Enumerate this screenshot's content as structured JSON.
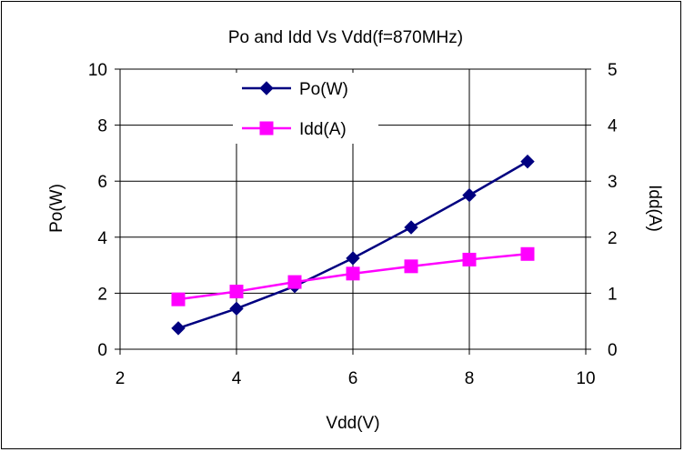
{
  "chart_data": {
    "type": "line",
    "title": "Po and Idd Vs Vdd(f=870MHz)",
    "xlabel": "Vdd(V)",
    "ylabel": "Po(W)",
    "y2label": "Idd(A)",
    "xlim": [
      2,
      10
    ],
    "ylim": [
      0,
      10
    ],
    "y2lim": [
      0,
      5
    ],
    "xticks": [
      "2",
      "4",
      "6",
      "8",
      "10"
    ],
    "yticks": [
      "0",
      "2",
      "4",
      "6",
      "8",
      "10"
    ],
    "y2ticks": [
      "0",
      "1",
      "2",
      "3",
      "4",
      "5"
    ],
    "grid": true,
    "legend_position": "top-center",
    "series": [
      {
        "name": "Po(W)",
        "axis": "left",
        "color": "#000080",
        "marker": "diamond",
        "x": [
          3,
          4,
          5,
          6,
          7,
          8,
          9
        ],
        "y": [
          0.75,
          1.45,
          2.25,
          3.25,
          4.35,
          5.5,
          6.7
        ]
      },
      {
        "name": "Idd(A)",
        "axis": "right",
        "color": "#ff00ff",
        "marker": "square",
        "x": [
          3,
          4,
          5,
          6,
          7,
          8,
          9
        ],
        "y": [
          0.89,
          1.03,
          1.2,
          1.35,
          1.48,
          1.6,
          1.7
        ]
      }
    ]
  }
}
